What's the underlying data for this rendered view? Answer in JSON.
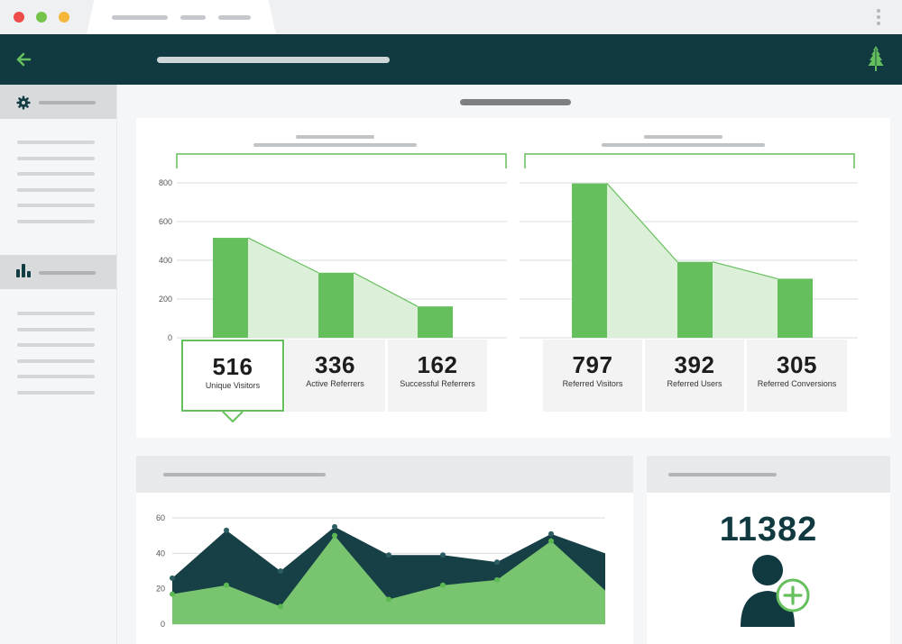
{
  "window": {
    "traffic_lights": {
      "close": "#ee4b4b",
      "minimize": "#f5b73a",
      "maximize": "#76c34a"
    }
  },
  "colors": {
    "header_bg": "#103940",
    "accent_green": "#65bf5c",
    "light_green_fill": "#dcefd8",
    "dark_area": "#163f46",
    "light_area": "#79c46e"
  },
  "icons": {
    "back": "arrow-left-icon",
    "logo": "pine-tree-icon",
    "sidebar_section_1": "gear-icon",
    "sidebar_section_2": "bar-chart-icon",
    "kpi": "add-user-icon"
  },
  "funnel_left": {
    "stats": [
      {
        "value": "516",
        "label": "Unique Visitors",
        "selected": true
      },
      {
        "value": "336",
        "label": "Active Referrers",
        "selected": false
      },
      {
        "value": "162",
        "label": "Successful Referrers",
        "selected": false
      }
    ]
  },
  "funnel_right": {
    "stats": [
      {
        "value": "797",
        "label": "Referred Visitors"
      },
      {
        "value": "392",
        "label": "Referred Users"
      },
      {
        "value": "305",
        "label": "Referred Conversions"
      }
    ]
  },
  "kpi": {
    "value": "11382"
  },
  "chart_data": [
    {
      "type": "bar",
      "categories": [
        "Unique Visitors",
        "Active Referrers",
        "Successful Referrers"
      ],
      "values": [
        516,
        336,
        162
      ],
      "ylim": [
        0,
        800
      ],
      "yticks": [
        0,
        200,
        400,
        600,
        800
      ],
      "grid": true,
      "color": "#65bf5c"
    },
    {
      "type": "bar",
      "categories": [
        "Referred Visitors",
        "Referred Users",
        "Referred Conversions"
      ],
      "values": [
        797,
        392,
        305
      ],
      "ylim": [
        0,
        800
      ],
      "grid": true,
      "color": "#65bf5c"
    },
    {
      "type": "area",
      "x": [
        1,
        2,
        3,
        4,
        5,
        6,
        7,
        8,
        9
      ],
      "series": [
        {
          "values": [
            26,
            53,
            30,
            55,
            39,
            39,
            35,
            51,
            40
          ],
          "color": "#163f46"
        },
        {
          "values": [
            17,
            22,
            10,
            50,
            14,
            22,
            25,
            47,
            19
          ],
          "color": "#79c46e"
        }
      ],
      "ylim": [
        0,
        60
      ],
      "yticks": [
        0,
        20,
        40,
        60
      ],
      "grid": true
    }
  ]
}
